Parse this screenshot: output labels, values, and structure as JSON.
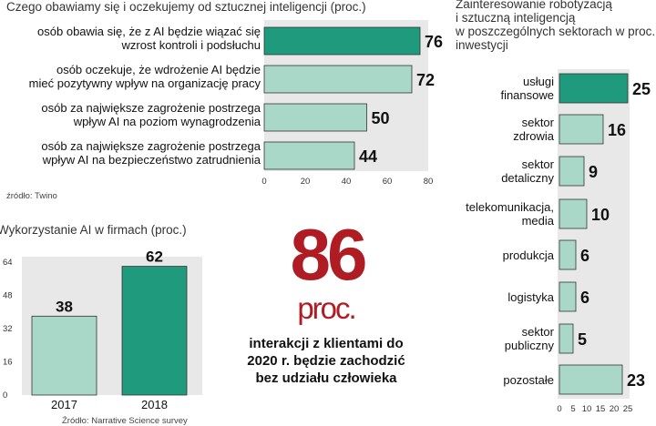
{
  "chart_data": [
    {
      "type": "bar",
      "orientation": "horizontal",
      "title": "Czego obawiamy się i oczekujemy od sztucznej inteligencji (proc.)",
      "categories": [
        [
          "osób obawia się, że z AI będzie wiązać się",
          "wzrost kontroli i podsłuchu"
        ],
        [
          "osób oczekuje, że wdrożenie AI będzie",
          "mieć pozytywny wpływ na organizację pracy"
        ],
        [
          "osób za największe zagrożenie postrzega",
          "wpływ AI na poziom wynagrodzenia"
        ],
        [
          "osób za największe zagrożenie postrzega",
          "wpływ AI na bezpieczeństwo zatrudnienia"
        ]
      ],
      "values": [
        76,
        72,
        50,
        44
      ],
      "value_labels": [
        "76",
        "72",
        "50",
        "44"
      ],
      "highlight_index": 0,
      "xlim": [
        0,
        80
      ],
      "xticks": [
        "0",
        "20",
        "40",
        "60",
        "80"
      ],
      "source": "źródło: Twino"
    },
    {
      "type": "bar",
      "orientation": "vertical",
      "title": "Wykorzystanie AI w firmach (proc.)",
      "categories": [
        "2017",
        "2018"
      ],
      "values": [
        38,
        62
      ],
      "value_labels": [
        "38",
        "62"
      ],
      "highlight_index": 1,
      "ylim": [
        0,
        64
      ],
      "yticks": [
        "0",
        "16",
        "32",
        "48",
        "64"
      ],
      "source": "Źródło: Narrative Science survey"
    },
    {
      "type": "bar",
      "orientation": "horizontal",
      "title": "Zainteresowanie robotyzacją i sztuczną inteligencją w poszczególnych sektorach w proc. inwestycji",
      "title_lines": [
        "Zainteresowanie robotyzacją",
        "i sztuczną inteligencją",
        "w poszczególnych sektorach w proc.",
        "inwestycji"
      ],
      "categories": [
        [
          "usługi",
          "finansowe"
        ],
        [
          "sektor",
          "zdrowia"
        ],
        [
          "sektor",
          "detaliczny"
        ],
        [
          "telekomunikacja,",
          "media"
        ],
        [
          "produkcja"
        ],
        [
          "logistyka"
        ],
        [
          "sektor",
          "publiczny"
        ],
        [
          "pozostałe"
        ]
      ],
      "values": [
        25,
        16,
        9,
        10,
        6,
        6,
        5,
        23
      ],
      "value_labels": [
        "25",
        "16",
        "9",
        "10",
        "6",
        "6",
        "5",
        "23"
      ],
      "highlight_index": 0,
      "xlim": [
        0,
        25
      ],
      "xticks": [
        "0",
        "5",
        "10",
        "15",
        "20",
        "25"
      ]
    }
  ],
  "callout": {
    "number": "86",
    "unit": "proc.",
    "text": "interakcji z klientami do 2020 r. będzie zachodzić bez udziału człowieka"
  },
  "colors": {
    "highlight": "#1f9a7c",
    "normal": "#a9d8c8",
    "bar_border": "#ffffff",
    "grid_bg": "#e8e8e8",
    "accent": "#b01c24"
  }
}
